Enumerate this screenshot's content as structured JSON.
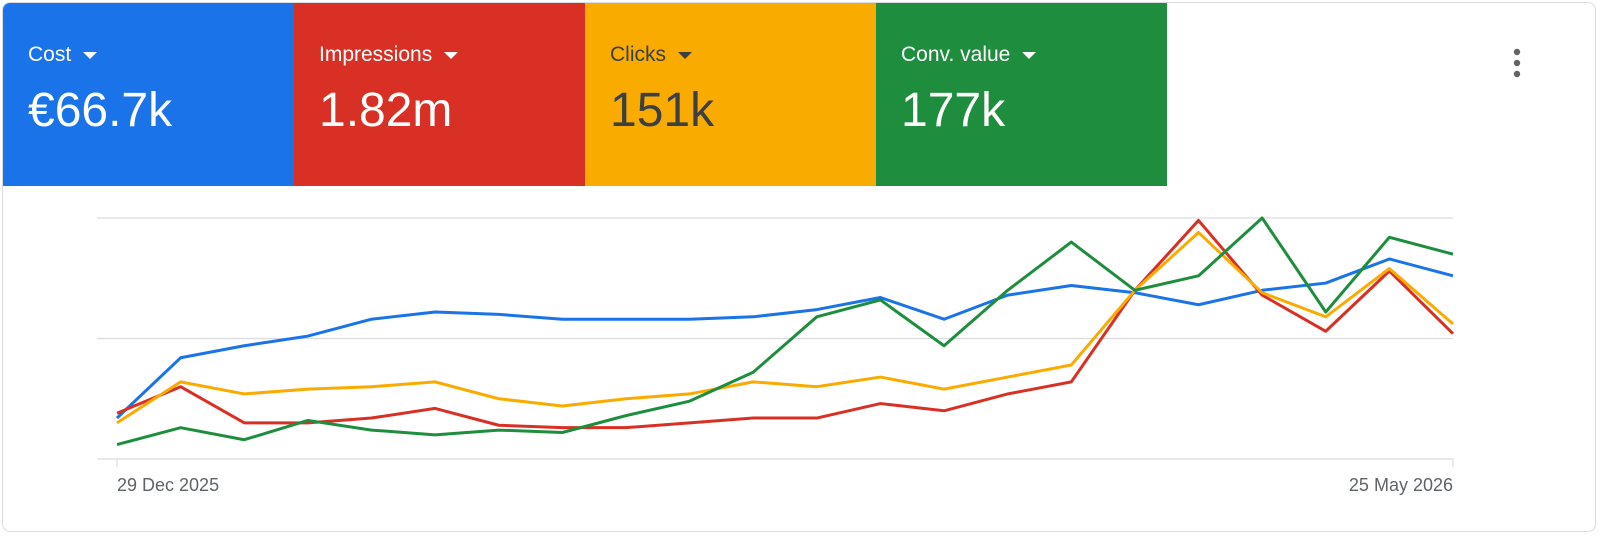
{
  "metrics": [
    {
      "label": "Cost",
      "value": "€66.7k",
      "color": "#1a73e8",
      "text_color": "#ffffff"
    },
    {
      "label": "Impressions",
      "value": "1.82m",
      "color": "#d93025",
      "text_color": "#ffffff"
    },
    {
      "label": "Clicks",
      "value": "151k",
      "color": "#f9ab00",
      "text_color": "#3c4043"
    },
    {
      "label": "Conv. value",
      "value": "177k",
      "color": "#1e8e3e",
      "text_color": "#ffffff"
    }
  ],
  "chart_data": {
    "type": "line",
    "categories": [
      "29 Dec 2025",
      null,
      null,
      null,
      null,
      null,
      null,
      null,
      null,
      null,
      null,
      null,
      null,
      null,
      null,
      null,
      null,
      null,
      null,
      null,
      null,
      "25 May 2026"
    ],
    "ylim": [
      0,
      100
    ],
    "yticks": [
      0,
      50,
      100
    ],
    "grid": true,
    "series": [
      {
        "color": "#1a73e8",
        "values": [
          17,
          42,
          47,
          51,
          58,
          61,
          60,
          58,
          58,
          58,
          59,
          62,
          67,
          58,
          68,
          72,
          69,
          64,
          70,
          73,
          83,
          76
        ]
      },
      {
        "color": "#d93025",
        "values": [
          19,
          30,
          15,
          15,
          17,
          21,
          14,
          13,
          13,
          15,
          17,
          17,
          23,
          20,
          27,
          32,
          70,
          99,
          68,
          53,
          78,
          52
        ]
      },
      {
        "color": "#f9ab00",
        "values": [
          15,
          32,
          27,
          29,
          30,
          32,
          25,
          22,
          25,
          27,
          32,
          30,
          34,
          29,
          34,
          39,
          70,
          94,
          69,
          59,
          79,
          56
        ]
      },
      {
        "color": "#1e8e3e",
        "values": [
          6,
          13,
          8,
          16,
          12,
          10,
          12,
          11,
          18,
          24,
          36,
          59,
          66,
          47,
          70,
          90,
          70,
          76,
          100,
          61,
          92,
          85
        ]
      }
    ]
  }
}
